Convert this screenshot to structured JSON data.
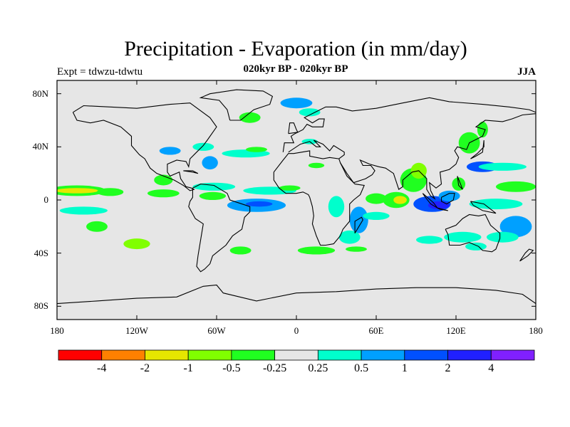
{
  "title": "Precipitation - Evaporation (in mm/day)",
  "subtitle": "020kyr BP - 020kyr BP",
  "experiment": "Expt = tdwzu-tdwtu",
  "season": "JJA",
  "lat_ticks": [
    {
      "value": 80,
      "label": "80N"
    },
    {
      "value": 40,
      "label": "40N"
    },
    {
      "value": 0,
      "label": "0"
    },
    {
      "value": -40,
      "label": "40S"
    },
    {
      "value": -80,
      "label": "80S"
    }
  ],
  "lon_ticks": [
    {
      "value": -180,
      "label": "180"
    },
    {
      "value": -120,
      "label": "120W"
    },
    {
      "value": -60,
      "label": "60W"
    },
    {
      "value": 0,
      "label": "0"
    },
    {
      "value": 60,
      "label": "60E"
    },
    {
      "value": 120,
      "label": "120E"
    },
    {
      "value": 180,
      "label": "180"
    }
  ],
  "colorbar": {
    "colors": [
      "#ff0000",
      "#ff8000",
      "#e6e600",
      "#80ff00",
      "#20ff20",
      "#e6e6e6",
      "#00ffcc",
      "#00a0ff",
      "#0050ff",
      "#2020ff",
      "#8020ff"
    ],
    "labels": [
      "-4",
      "-2",
      "-1",
      "-0.5",
      "-0.25",
      "0.25",
      "0.5",
      "1",
      "2",
      "4"
    ]
  },
  "map_background": "#e6e6e6",
  "anomalies": [
    {
      "lon": -165,
      "lat": 7,
      "lw": 22,
      "lh": 4,
      "c": 4
    },
    {
      "lon": -165,
      "lat": 7,
      "lw": 16,
      "lh": 2,
      "c": 2
    },
    {
      "lon": -140,
      "lat": 6,
      "lw": 10,
      "lh": 3,
      "c": 4
    },
    {
      "lon": -160,
      "lat": -8,
      "lw": 18,
      "lh": 3,
      "c": 6
    },
    {
      "lon": -150,
      "lat": -20,
      "lw": 8,
      "lh": 4,
      "c": 4
    },
    {
      "lon": -120,
      "lat": -33,
      "lw": 10,
      "lh": 4,
      "c": 3
    },
    {
      "lon": -100,
      "lat": 5,
      "lw": 12,
      "lh": 3,
      "c": 4
    },
    {
      "lon": -100,
      "lat": 15,
      "lw": 7,
      "lh": 4,
      "c": 4
    },
    {
      "lon": -62,
      "lat": 10,
      "lw": 16,
      "lh": 3,
      "c": 6
    },
    {
      "lon": -63,
      "lat": 3,
      "lw": 10,
      "lh": 3,
      "c": 4
    },
    {
      "lon": -20,
      "lat": 7,
      "lw": 20,
      "lh": 3,
      "c": 6
    },
    {
      "lon": -5,
      "lat": 9,
      "lw": 8,
      "lh": 2,
      "c": 4
    },
    {
      "lon": -30,
      "lat": -4,
      "lw": 22,
      "lh": 5,
      "c": 7
    },
    {
      "lon": -28,
      "lat": -3,
      "lw": 10,
      "lh": 2,
      "c": 8
    },
    {
      "lon": -42,
      "lat": -38,
      "lw": 8,
      "lh": 3,
      "c": 4
    },
    {
      "lon": -38,
      "lat": 35,
      "lw": 18,
      "lh": 3,
      "c": 6
    },
    {
      "lon": -65,
      "lat": 28,
      "lw": 6,
      "lh": 5,
      "c": 7
    },
    {
      "lon": -70,
      "lat": 40,
      "lw": 8,
      "lh": 3,
      "c": 6
    },
    {
      "lon": -95,
      "lat": 37,
      "lw": 8,
      "lh": 3,
      "c": 7
    },
    {
      "lon": -80,
      "lat": 20,
      "lw": 5,
      "lh": 3,
      "c": 5
    },
    {
      "lon": 0,
      "lat": 73,
      "lw": 12,
      "lh": 4,
      "c": 7
    },
    {
      "lon": 10,
      "lat": 66,
      "lw": 8,
      "lh": 3,
      "c": 6
    },
    {
      "lon": -30,
      "lat": 38,
      "lw": 8,
      "lh": 2,
      "c": 4
    },
    {
      "lon": 10,
      "lat": 44,
      "lw": 6,
      "lh": 2,
      "c": 6
    },
    {
      "lon": 30,
      "lat": -5,
      "lw": 6,
      "lh": 8,
      "c": 6
    },
    {
      "lon": 47,
      "lat": -15,
      "lw": 7,
      "lh": 10,
      "c": 7
    },
    {
      "lon": 40,
      "lat": -28,
      "lw": 8,
      "lh": 5,
      "c": 6
    },
    {
      "lon": 15,
      "lat": -38,
      "lw": 14,
      "lh": 3,
      "c": 4
    },
    {
      "lon": 45,
      "lat": -37,
      "lw": 8,
      "lh": 2,
      "c": 4
    },
    {
      "lon": 60,
      "lat": 1,
      "lw": 8,
      "lh": 4,
      "c": 4
    },
    {
      "lon": 75,
      "lat": 0,
      "lw": 10,
      "lh": 6,
      "c": 4
    },
    {
      "lon": 78,
      "lat": 0,
      "lw": 5,
      "lh": 3,
      "c": 2
    },
    {
      "lon": 60,
      "lat": -12,
      "lw": 10,
      "lh": 3,
      "c": 6
    },
    {
      "lon": 88,
      "lat": 15,
      "lw": 10,
      "lh": 9,
      "c": 4
    },
    {
      "lon": 92,
      "lat": 22,
      "lw": 6,
      "lh": 6,
      "c": 3
    },
    {
      "lon": 102,
      "lat": -3,
      "lw": 14,
      "lh": 6,
      "c": 8
    },
    {
      "lon": 107,
      "lat": -4,
      "lw": 8,
      "lh": 3,
      "c": 9
    },
    {
      "lon": 115,
      "lat": 3,
      "lw": 8,
      "lh": 4,
      "c": 7
    },
    {
      "lon": 122,
      "lat": 12,
      "lw": 5,
      "lh": 5,
      "c": 4
    },
    {
      "lon": 130,
      "lat": 43,
      "lw": 8,
      "lh": 8,
      "c": 4
    },
    {
      "lon": 140,
      "lat": 53,
      "lw": 4,
      "lh": 6,
      "c": 4
    },
    {
      "lon": 140,
      "lat": 25,
      "lw": 12,
      "lh": 4,
      "c": 8
    },
    {
      "lon": 155,
      "lat": 25,
      "lw": 18,
      "lh": 3,
      "c": 6
    },
    {
      "lon": 165,
      "lat": 10,
      "lw": 15,
      "lh": 4,
      "c": 4
    },
    {
      "lon": 150,
      "lat": -3,
      "lw": 20,
      "lh": 4,
      "c": 6
    },
    {
      "lon": 165,
      "lat": -20,
      "lw": 12,
      "lh": 8,
      "c": 7
    },
    {
      "lon": 155,
      "lat": -28,
      "lw": 12,
      "lh": 4,
      "c": 6
    },
    {
      "lon": 125,
      "lat": -28,
      "lw": 14,
      "lh": 4,
      "c": 6
    },
    {
      "lon": 135,
      "lat": -35,
      "lw": 8,
      "lh": 3,
      "c": 6
    },
    {
      "lon": 100,
      "lat": -30,
      "lw": 10,
      "lh": 3,
      "c": 6
    },
    {
      "lon": -35,
      "lat": 62,
      "lw": 8,
      "lh": 4,
      "c": 4
    },
    {
      "lon": 15,
      "lat": 26,
      "lw": 6,
      "lh": 2,
      "c": 4
    }
  ]
}
